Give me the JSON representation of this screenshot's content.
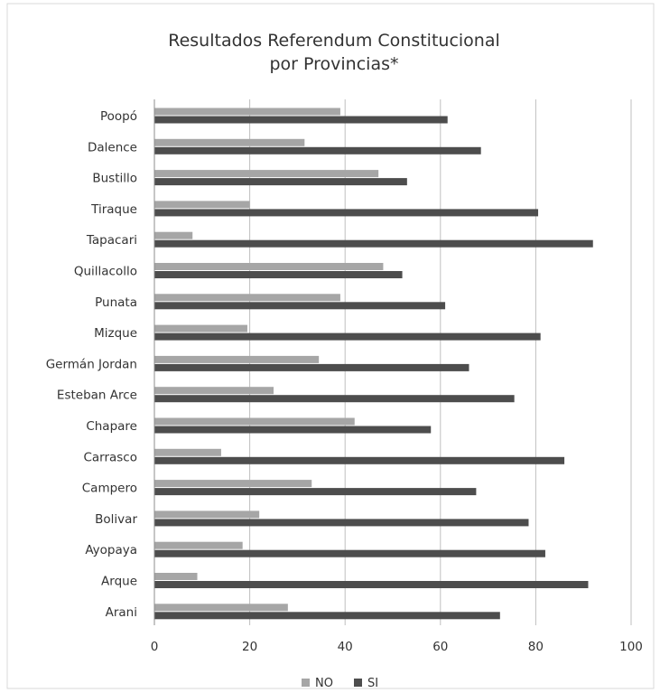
{
  "chart_data": {
    "type": "bar",
    "orientation": "horizontal",
    "title": [
      "Resultados Referendum Constitucional",
      "por Provincias*"
    ],
    "categories": [
      "Poopó",
      "Dalence",
      "Bustillo",
      "Tiraque",
      "Tapacari",
      "Quillacollo",
      "Punata",
      "Mizque",
      "Germán Jordan",
      "Esteban Arce",
      "Chapare",
      "Carrasco",
      "Campero",
      "Bolivar",
      "Ayopaya",
      "Arque",
      "Arani"
    ],
    "series": [
      {
        "name": "NO",
        "color": "#a6a6a6",
        "values": [
          39,
          31.5,
          47,
          20,
          8,
          48,
          39,
          19.5,
          34.5,
          25,
          42,
          14,
          33,
          22,
          18.5,
          9,
          28
        ]
      },
      {
        "name": "SI",
        "color": "#4d4d4d",
        "values": [
          61.5,
          68.5,
          53,
          80.5,
          92,
          52,
          61,
          81,
          66,
          75.5,
          58,
          86,
          67.5,
          78.5,
          82,
          91,
          72.5
        ]
      }
    ],
    "xlim": [
      0,
      100
    ],
    "xticks": [
      0,
      20,
      40,
      60,
      80,
      100
    ],
    "grid": true,
    "legend_position": "bottom"
  }
}
